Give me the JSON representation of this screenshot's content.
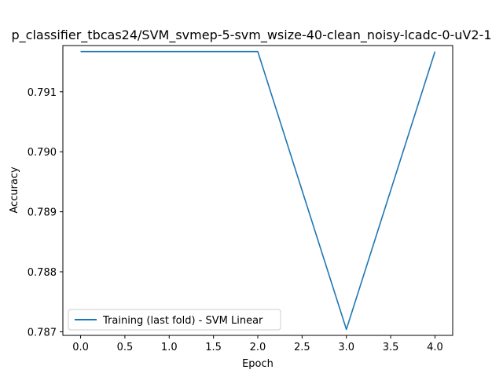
{
  "chart_data": {
    "type": "line",
    "title": "p_classifier_tbcas24/SVM_svmep-5-svm_wsize-40-clean_noisy-lcadc-0-uV2-1",
    "xlabel": "Epoch",
    "ylabel": "Accuracy",
    "xlim": [
      -0.2,
      4.2
    ],
    "ylim": [
      0.78694,
      0.79177
    ],
    "x_ticks": [
      0.0,
      0.5,
      1.0,
      1.5,
      2.0,
      2.5,
      3.0,
      3.5,
      4.0
    ],
    "x_tick_labels": [
      "0.0",
      "0.5",
      "1.0",
      "1.5",
      "2.0",
      "2.5",
      "3.0",
      "3.5",
      "4.0"
    ],
    "y_ticks": [
      0.787,
      0.788,
      0.789,
      0.79,
      0.791
    ],
    "y_tick_labels": [
      "0.787",
      "0.788",
      "0.789",
      "0.790",
      "0.791"
    ],
    "grid": false,
    "legend_position": "lower-left",
    "series": [
      {
        "name": "Training (last fold) - SVM Linear",
        "color": "#1f77b4",
        "x": [
          0,
          1,
          2,
          3,
          4
        ],
        "y": [
          0.79167,
          0.79167,
          0.79167,
          0.78704,
          0.79167
        ]
      }
    ]
  }
}
